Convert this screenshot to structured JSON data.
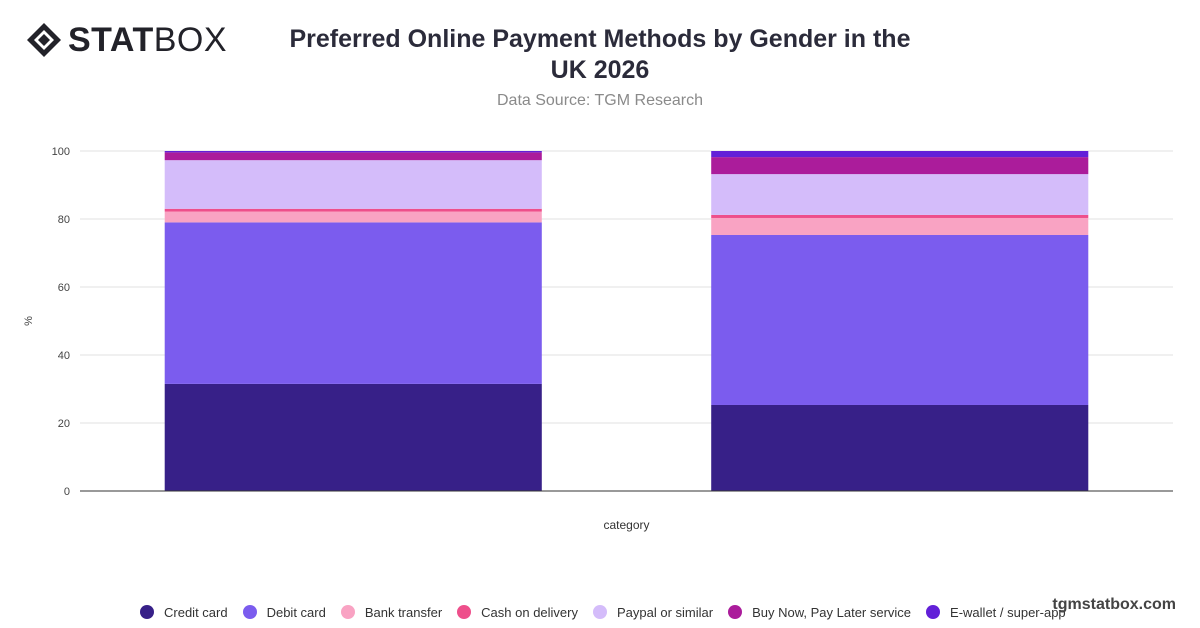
{
  "brand": {
    "logo_bold": "STAT",
    "logo_light": "BOX",
    "watermark": "tgmstatbox.com"
  },
  "header": {
    "title_line1": "Preferred Online Payment Methods by Gender in the",
    "title_line2": "UK 2026",
    "subtitle": "Data Source: TGM Research"
  },
  "chart_data": {
    "type": "bar",
    "stacked": true,
    "categories": [
      "",
      ""
    ],
    "xlabel": "category",
    "ylabel": "%",
    "ylim": [
      0,
      100
    ],
    "yticks": [
      0,
      20,
      40,
      60,
      80,
      100
    ],
    "grid": true,
    "legend_position": "bottom",
    "series": [
      {
        "name": "Credit card",
        "color": "#372088",
        "values": [
          31.5,
          25.3
        ]
      },
      {
        "name": "Debit card",
        "color": "#7b5cee",
        "values": [
          47.5,
          50.0
        ]
      },
      {
        "name": "Bank transfer",
        "color": "#f9a3c3",
        "values": [
          3.2,
          5.0
        ]
      },
      {
        "name": "Cash on delivery",
        "color": "#ee4f8b",
        "values": [
          0.8,
          0.9
        ]
      },
      {
        "name": "Paypal or similar",
        "color": "#d4bcfa",
        "values": [
          14.3,
          12.0
        ]
      },
      {
        "name": "Buy Now, Pay Later service",
        "color": "#ab1c9b",
        "values": [
          2.3,
          5.0
        ]
      },
      {
        "name": "E-wallet / super-app pay",
        "color": "#6220d8",
        "values": [
          0.4,
          1.8
        ]
      }
    ]
  }
}
